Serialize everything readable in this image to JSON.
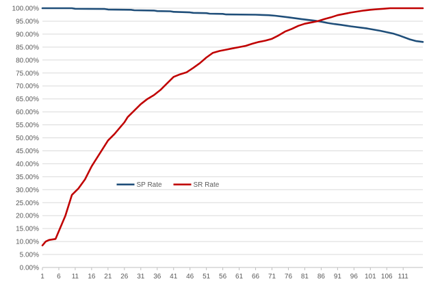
{
  "chart_data": {
    "type": "line",
    "title": "",
    "xlabel": "",
    "ylabel": "",
    "ylim": [
      0,
      100
    ],
    "xlim": [
      1,
      117
    ],
    "y_tick_labels": [
      "0.00%",
      "5.00%",
      "10.00%",
      "15.00%",
      "20.00%",
      "25.00%",
      "30.00%",
      "35.00%",
      "40.00%",
      "45.00%",
      "50.00%",
      "55.00%",
      "60.00%",
      "65.00%",
      "70.00%",
      "75.00%",
      "80.00%",
      "85.00%",
      "90.00%",
      "95.00%",
      "100.00%"
    ],
    "x_tick_labels": [
      "1",
      "6",
      "11",
      "16",
      "21",
      "26",
      "31",
      "36",
      "41",
      "46",
      "51",
      "56",
      "61",
      "66",
      "71",
      "76",
      "81",
      "86",
      "91",
      "96",
      "101",
      "106",
      "111"
    ],
    "grid": "horizontal",
    "legend_position": "center",
    "series": [
      {
        "name": "SP Rate",
        "color": "#1f4e79",
        "points": [
          [
            1,
            100
          ],
          [
            10,
            100
          ],
          [
            11,
            99.8
          ],
          [
            20,
            99.7
          ],
          [
            21,
            99.5
          ],
          [
            28,
            99.4
          ],
          [
            29,
            99.2
          ],
          [
            35,
            99.1
          ],
          [
            36,
            98.9
          ],
          [
            40,
            98.8
          ],
          [
            41,
            98.6
          ],
          [
            46,
            98.4
          ],
          [
            47,
            98.2
          ],
          [
            51,
            98.1
          ],
          [
            52,
            97.9
          ],
          [
            56,
            97.8
          ],
          [
            57,
            97.6
          ],
          [
            66,
            97.5
          ],
          [
            70,
            97.3
          ],
          [
            72,
            97.1
          ],
          [
            76,
            96.5
          ],
          [
            80,
            95.8
          ],
          [
            84,
            95.2
          ],
          [
            86,
            94.8
          ],
          [
            88,
            94.3
          ],
          [
            90,
            93.9
          ],
          [
            92,
            93.6
          ],
          [
            95,
            93.0
          ],
          [
            100,
            92.2
          ],
          [
            104,
            91.3
          ],
          [
            108,
            90.2
          ],
          [
            110,
            89.4
          ],
          [
            113,
            88.0
          ],
          [
            115,
            87.3
          ],
          [
            117,
            87.0
          ]
        ]
      },
      {
        "name": "SR Rate",
        "color": "#c00000",
        "points": [
          [
            1,
            8.5
          ],
          [
            2,
            10
          ],
          [
            3,
            10.6
          ],
          [
            5,
            11
          ],
          [
            6,
            14
          ],
          [
            8,
            20
          ],
          [
            10,
            28
          ],
          [
            12,
            30.5
          ],
          [
            14,
            34
          ],
          [
            16,
            39
          ],
          [
            17,
            41
          ],
          [
            19,
            45
          ],
          [
            21,
            49
          ],
          [
            23,
            51.5
          ],
          [
            25,
            54.5
          ],
          [
            26,
            56
          ],
          [
            27,
            58
          ],
          [
            29,
            60.5
          ],
          [
            31,
            63
          ],
          [
            33,
            65
          ],
          [
            35,
            66.5
          ],
          [
            37,
            68.5
          ],
          [
            39,
            71
          ],
          [
            41,
            73.5
          ],
          [
            43,
            74.5
          ],
          [
            45,
            75.3
          ],
          [
            47,
            77
          ],
          [
            49,
            78.8
          ],
          [
            51,
            81
          ],
          [
            53,
            82.8
          ],
          [
            55,
            83.5
          ],
          [
            57,
            84
          ],
          [
            59,
            84.5
          ],
          [
            61,
            85
          ],
          [
            63,
            85.5
          ],
          [
            65,
            86.3
          ],
          [
            67,
            87
          ],
          [
            69,
            87.5
          ],
          [
            71,
            88.2
          ],
          [
            73,
            89.5
          ],
          [
            75,
            91
          ],
          [
            77,
            92
          ],
          [
            79,
            93.2
          ],
          [
            81,
            94
          ],
          [
            83,
            94.5
          ],
          [
            85,
            95
          ],
          [
            87,
            95.8
          ],
          [
            89,
            96.5
          ],
          [
            91,
            97.3
          ],
          [
            93,
            97.8
          ],
          [
            95,
            98.3
          ],
          [
            97,
            98.7
          ],
          [
            99,
            99.1
          ],
          [
            101,
            99.4
          ],
          [
            103,
            99.6
          ],
          [
            105,
            99.8
          ],
          [
            107,
            100
          ],
          [
            117,
            100
          ]
        ]
      }
    ]
  }
}
